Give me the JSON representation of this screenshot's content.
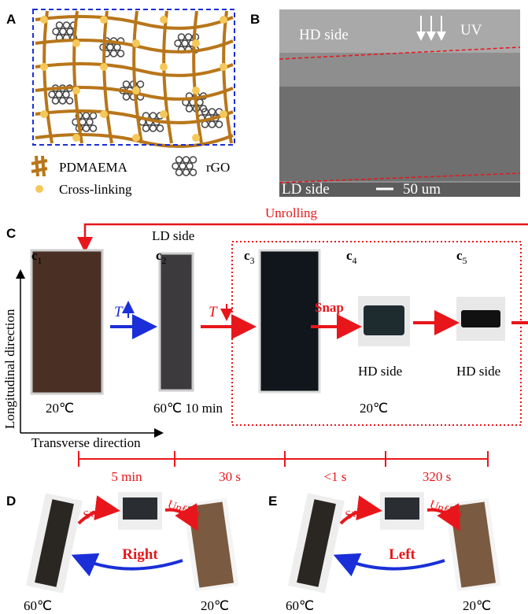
{
  "panel_a": {
    "letter": "A",
    "legend": {
      "network": "PDMAEMA",
      "graphene": "rGO",
      "crosslink": "Cross-linking"
    }
  },
  "panel_b": {
    "letter": "B",
    "top_label": "HD side",
    "uv": "UV",
    "bottom_label": "LD side",
    "scale_bar": "50 um"
  },
  "panel_c": {
    "letter": "C",
    "unrolling": "Unrolling",
    "ld_side": "LD side",
    "steps": [
      {
        "letter": "c",
        "sub": "1"
      },
      {
        "letter": "c",
        "sub": "2"
      },
      {
        "letter": "c",
        "sub": "3"
      },
      {
        "letter": "c",
        "sub": "4"
      },
      {
        "letter": "c",
        "sub": "5"
      }
    ],
    "heat_symbol": "T",
    "cool_symbol": "T",
    "snap": "Snap",
    "hd_side_4": "HD side",
    "hd_side_5": "HD side",
    "temp_1": "20℃",
    "temp_2": "60℃ 10 min",
    "temp_3": "20℃",
    "axis_long": "Longitudinal direction",
    "axis_trans": "Transverse direction",
    "timeline": [
      "5 min",
      "30 s",
      "<1 s",
      "320 s"
    ]
  },
  "panel_d": {
    "letter": "D",
    "snap": "Snap",
    "unfold": "Unfold",
    "direction": "Right",
    "temp_left": "60℃",
    "temp_right": "20℃"
  },
  "panel_e": {
    "letter": "E",
    "snap": "Snap",
    "unfold": "Unfold",
    "direction": "Left",
    "temp_left": "60℃",
    "temp_right": "20℃"
  }
}
